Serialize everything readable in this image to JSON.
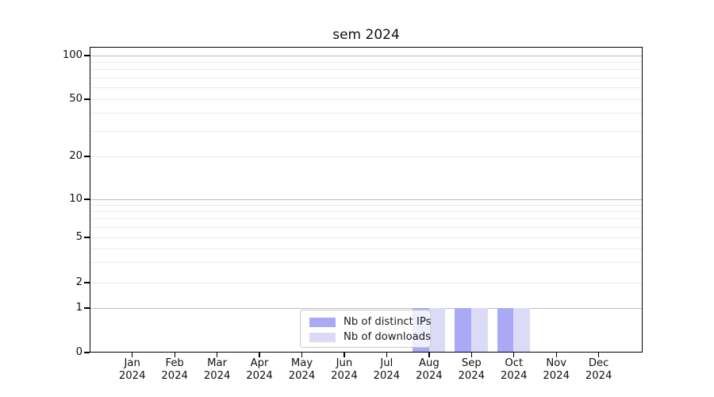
{
  "title": "sem 2024",
  "chart_data": {
    "type": "bar",
    "title": "sem 2024",
    "categories": [
      "Jan 2024",
      "Feb 2024",
      "Mar 2024",
      "Apr 2024",
      "May 2024",
      "Jun 2024",
      "Jul 2024",
      "Aug 2024",
      "Sep 2024",
      "Oct 2024",
      "Nov 2024",
      "Dec 2024"
    ],
    "series": [
      {
        "name": "Nb of distinct IPs",
        "color": "#a9a9f5",
        "values": [
          0,
          0,
          0,
          0,
          0,
          0,
          0,
          1,
          1,
          1,
          0,
          0
        ]
      },
      {
        "name": "Nb of downloads",
        "color": "#dbdbf8",
        "values": [
          0,
          0,
          0,
          0,
          0,
          0,
          0,
          1,
          1,
          1,
          0,
          0
        ]
      }
    ],
    "y_axis": {
      "scale": "log-like with 0 baseline",
      "tick_labels": [
        "100",
        "50",
        "20",
        "10",
        "5",
        "2",
        "1",
        "0"
      ],
      "tick_values": [
        100,
        50,
        20,
        10,
        5,
        2,
        1,
        0
      ],
      "major_gridlines": [
        100,
        10,
        1
      ],
      "minor_gridlines": [
        90,
        80,
        70,
        60,
        50,
        40,
        30,
        20,
        9,
        8,
        7,
        6,
        5,
        4,
        3,
        2
      ],
      "ylim": [
        0,
        120
      ]
    },
    "x_axis": {
      "year_line": "2024"
    },
    "legend_position": "bottom-center",
    "grid": "horizontal only"
  },
  "colors": {
    "bar_dark": "#a9a9f5",
    "bar_light": "#dbdbf8",
    "grid_major": "#bdbdbd",
    "grid_minor": "#eaeaea",
    "spine": "#000000"
  }
}
